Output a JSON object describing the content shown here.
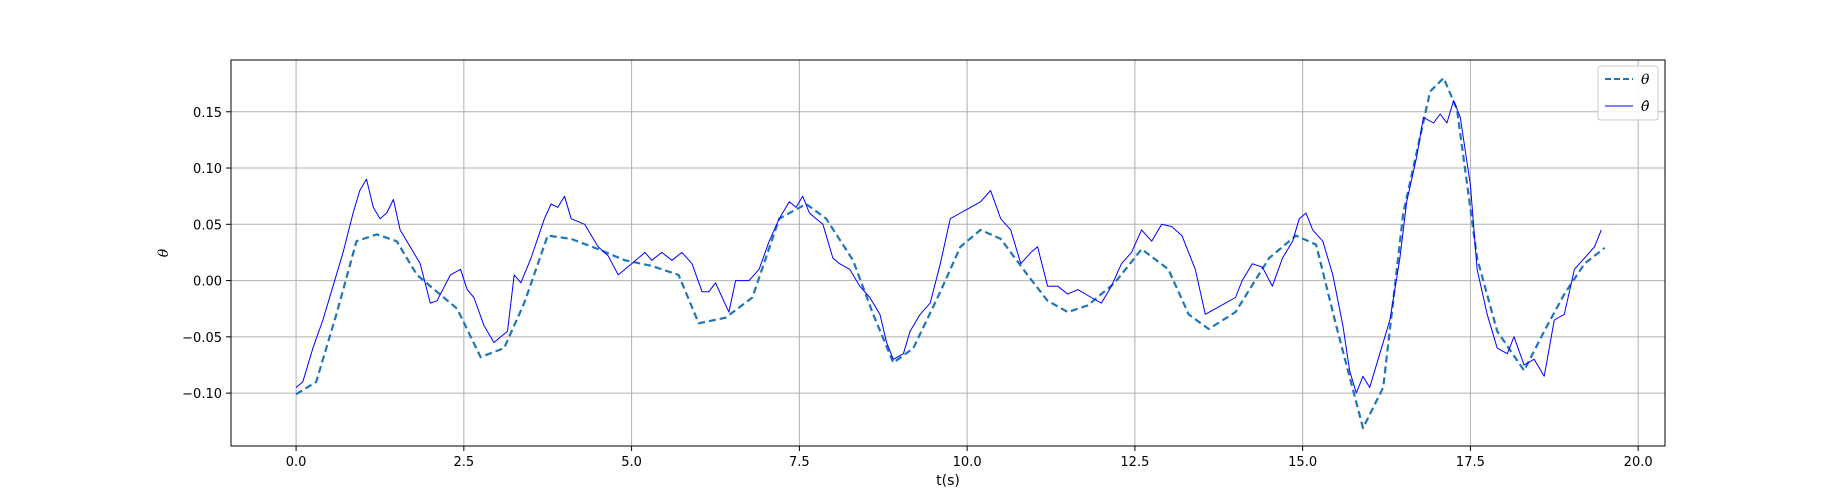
{
  "chart_data": {
    "type": "line",
    "title": "",
    "xlabel": "t(s)",
    "ylabel": "θ",
    "xlim": [
      -0.97,
      20.4
    ],
    "ylim": [
      -0.147,
      0.196
    ],
    "xticks": [
      0.0,
      2.5,
      5.0,
      7.5,
      10.0,
      12.5,
      15.0,
      17.5,
      20.0
    ],
    "xtick_labels": [
      "0.0",
      "2.5",
      "5.0",
      "7.5",
      "10.0",
      "12.5",
      "15.0",
      "17.5",
      "20.0"
    ],
    "yticks": [
      -0.1,
      -0.05,
      0.0,
      0.05,
      0.1,
      0.15
    ],
    "ytick_labels": [
      "−0.10",
      "−0.05",
      "0.00",
      "0.05",
      "0.10",
      "0.15"
    ],
    "grid": true,
    "legend_position": "top-right",
    "series": [
      {
        "name": "θ",
        "style": "dashed",
        "color": "#1f77b4",
        "x": [
          0.0,
          0.3,
          0.6,
          0.9,
          1.2,
          1.5,
          1.8,
          2.1,
          2.4,
          2.75,
          3.1,
          3.4,
          3.75,
          4.1,
          4.5,
          4.9,
          5.3,
          5.7,
          6.0,
          6.4,
          6.8,
          7.2,
          7.6,
          7.9,
          8.3,
          8.6,
          8.9,
          9.2,
          9.6,
          9.9,
          10.2,
          10.5,
          10.9,
          11.2,
          11.5,
          11.8,
          12.2,
          12.6,
          13.0,
          13.3,
          13.6,
          14.0,
          14.5,
          14.9,
          15.2,
          15.5,
          15.9,
          16.2,
          16.5,
          16.9,
          17.1,
          17.3,
          17.6,
          17.9,
          18.3,
          18.6,
          18.9,
          19.2,
          19.5
        ],
        "y": [
          -0.101,
          -0.09,
          -0.03,
          0.035,
          0.041,
          0.035,
          0.005,
          -0.01,
          -0.025,
          -0.068,
          -0.06,
          -0.02,
          0.04,
          0.037,
          0.028,
          0.018,
          0.013,
          0.005,
          -0.038,
          -0.033,
          -0.015,
          0.055,
          0.068,
          0.055,
          0.018,
          -0.03,
          -0.073,
          -0.06,
          -0.01,
          0.03,
          0.045,
          0.037,
          0.005,
          -0.018,
          -0.028,
          -0.022,
          -0.002,
          0.028,
          0.01,
          -0.03,
          -0.043,
          -0.028,
          0.02,
          0.04,
          0.032,
          -0.04,
          -0.131,
          -0.095,
          0.06,
          0.168,
          0.18,
          0.152,
          0.02,
          -0.045,
          -0.08,
          -0.045,
          -0.012,
          0.015,
          0.029
        ]
      },
      {
        "name": "θ̂",
        "style": "solid",
        "color": "#0000ff",
        "x": [
          0.0,
          0.1,
          0.25,
          0.4,
          0.55,
          0.7,
          0.85,
          0.95,
          1.05,
          1.15,
          1.25,
          1.35,
          1.45,
          1.55,
          1.7,
          1.85,
          2.0,
          2.1,
          2.3,
          2.45,
          2.55,
          2.65,
          2.8,
          2.95,
          3.05,
          3.15,
          3.25,
          3.35,
          3.5,
          3.7,
          3.8,
          3.9,
          4.0,
          4.1,
          4.3,
          4.5,
          4.65,
          4.8,
          5.0,
          5.1,
          5.2,
          5.3,
          5.45,
          5.6,
          5.75,
          5.9,
          6.05,
          6.15,
          6.25,
          6.35,
          6.45,
          6.55,
          6.75,
          6.9,
          7.05,
          7.2,
          7.35,
          7.45,
          7.55,
          7.65,
          7.75,
          7.85,
          8.0,
          8.1,
          8.25,
          8.4,
          8.55,
          8.7,
          8.8,
          8.9,
          9.05,
          9.15,
          9.3,
          9.45,
          9.6,
          9.75,
          9.9,
          10.05,
          10.2,
          10.35,
          10.5,
          10.65,
          10.8,
          10.95,
          11.05,
          11.2,
          11.35,
          11.5,
          11.65,
          11.85,
          12.0,
          12.15,
          12.3,
          12.45,
          12.6,
          12.75,
          12.9,
          13.05,
          13.2,
          13.4,
          13.55,
          13.7,
          13.85,
          14.0,
          14.1,
          14.25,
          14.4,
          14.55,
          14.7,
          14.85,
          14.95,
          15.05,
          15.15,
          15.3,
          15.45,
          15.6,
          15.7,
          15.8,
          15.9,
          16.0,
          16.15,
          16.3,
          16.45,
          16.55,
          16.7,
          16.8,
          16.95,
          17.05,
          17.15,
          17.25,
          17.35,
          17.5,
          17.6,
          17.75,
          17.9,
          18.05,
          18.15,
          18.3,
          18.45,
          18.6,
          18.75,
          18.9,
          19.05,
          19.2,
          19.35,
          19.45
        ],
        "y": [
          -0.095,
          -0.09,
          -0.06,
          -0.035,
          -0.005,
          0.025,
          0.06,
          0.08,
          0.09,
          0.065,
          0.055,
          0.06,
          0.072,
          0.045,
          0.03,
          0.015,
          -0.02,
          -0.018,
          0.005,
          0.01,
          -0.008,
          -0.015,
          -0.04,
          -0.055,
          -0.05,
          -0.045,
          0.005,
          -0.002,
          0.02,
          0.055,
          0.068,
          0.065,
          0.075,
          0.055,
          0.05,
          0.03,
          0.022,
          0.005,
          0.015,
          0.02,
          0.025,
          0.018,
          0.025,
          0.018,
          0.025,
          0.015,
          -0.01,
          -0.01,
          -0.002,
          -0.015,
          -0.028,
          0.0,
          0.0,
          0.01,
          0.035,
          0.055,
          0.07,
          0.065,
          0.075,
          0.06,
          0.055,
          0.05,
          0.02,
          0.015,
          0.01,
          -0.005,
          -0.015,
          -0.03,
          -0.055,
          -0.07,
          -0.065,
          -0.045,
          -0.03,
          -0.02,
          0.015,
          0.055,
          0.06,
          0.065,
          0.07,
          0.08,
          0.055,
          0.045,
          0.015,
          0.025,
          0.03,
          -0.005,
          -0.005,
          -0.012,
          -0.008,
          -0.015,
          -0.02,
          -0.005,
          0.015,
          0.025,
          0.045,
          0.035,
          0.05,
          0.048,
          0.04,
          0.01,
          -0.03,
          -0.025,
          -0.02,
          -0.015,
          0.0,
          0.015,
          0.012,
          -0.005,
          0.02,
          0.035,
          0.055,
          0.06,
          0.045,
          0.035,
          0.005,
          -0.04,
          -0.08,
          -0.1,
          -0.085,
          -0.095,
          -0.065,
          -0.035,
          0.02,
          0.07,
          0.11,
          0.145,
          0.14,
          0.148,
          0.14,
          0.16,
          0.145,
          0.085,
          0.01,
          -0.03,
          -0.06,
          -0.065,
          -0.05,
          -0.075,
          -0.07,
          -0.085,
          -0.035,
          -0.03,
          0.01,
          0.02,
          0.03,
          0.045
        ]
      }
    ]
  }
}
